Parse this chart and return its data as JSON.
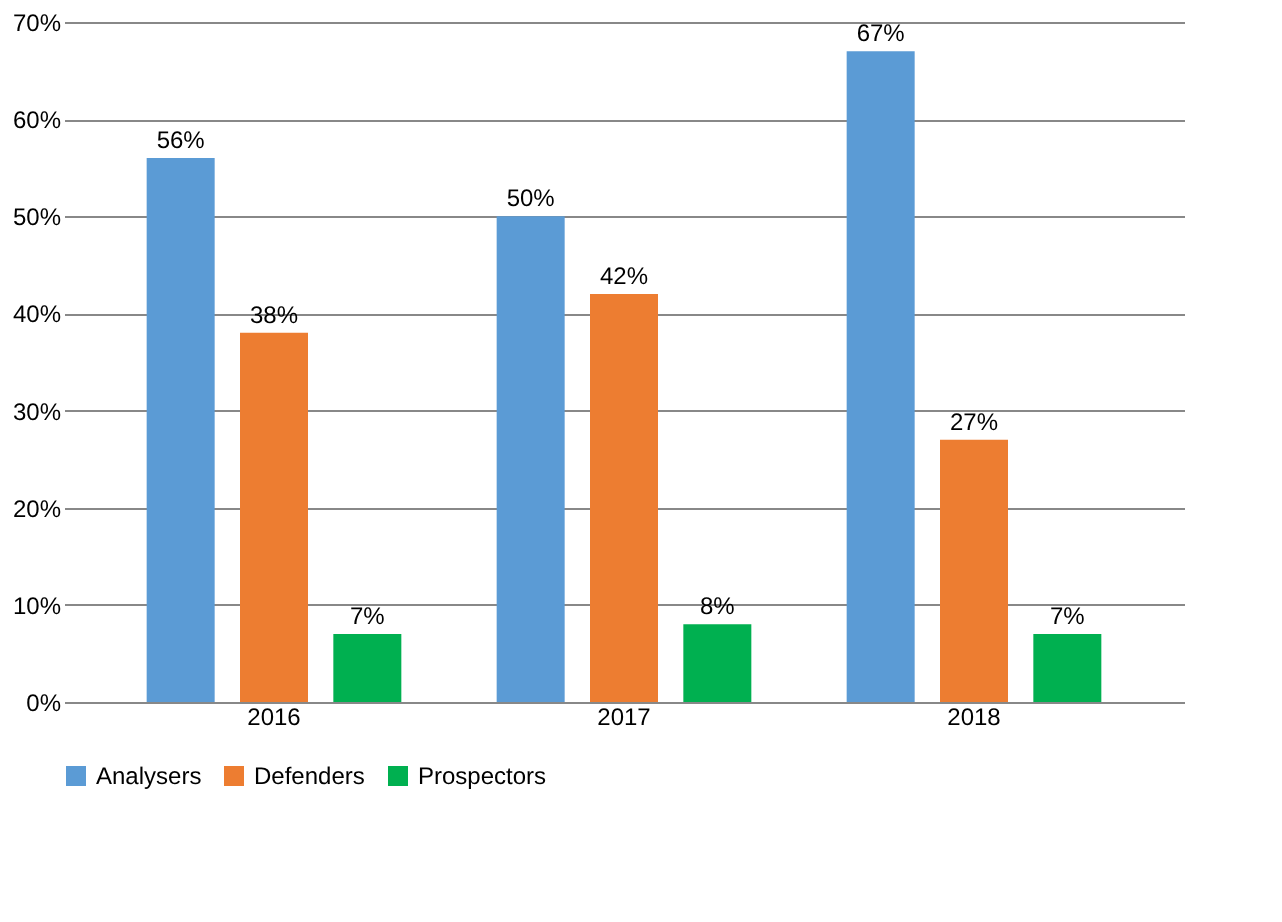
{
  "chart_data": {
    "type": "bar",
    "categories": [
      "2016",
      "2017",
      "2018"
    ],
    "series": [
      {
        "name": "Analysers",
        "color": "#5b9bd5",
        "values": [
          56,
          50,
          67
        ],
        "value_labels": [
          "56%",
          "50%",
          "67%"
        ]
      },
      {
        "name": "Defenders",
        "color": "#ed7d31",
        "values": [
          38,
          42,
          27
        ],
        "value_labels": [
          "38%",
          "42%",
          "27%"
        ]
      },
      {
        "name": "Prospectors",
        "color": "#00b050",
        "values": [
          7,
          8,
          7
        ],
        "value_labels": [
          "7%",
          "8%",
          "7%"
        ]
      }
    ],
    "ylim": [
      0,
      70
    ],
    "yticks": [
      {
        "value": 0,
        "label": "0%"
      },
      {
        "value": 10,
        "label": "10%"
      },
      {
        "value": 20,
        "label": "20%"
      },
      {
        "value": 30,
        "label": "30%"
      },
      {
        "value": 40,
        "label": "40%"
      },
      {
        "value": 50,
        "label": "50%"
      },
      {
        "value": 60,
        "label": "60%"
      },
      {
        "value": 70,
        "label": "70%"
      }
    ],
    "grid": "y",
    "legend": "bottom"
  }
}
